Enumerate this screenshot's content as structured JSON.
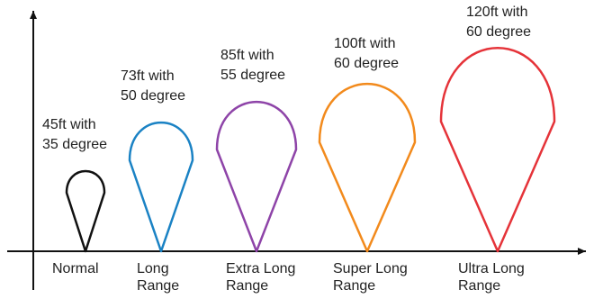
{
  "beams": [
    {
      "id": "normal",
      "category": [
        "Normal"
      ],
      "distance_label": "45ft with",
      "angle_label": "35 degree",
      "distance_ft": 45,
      "angle_deg": 35,
      "color": "#111111"
    },
    {
      "id": "long-range",
      "category": [
        "Long",
        "Range"
      ],
      "distance_label": "73ft with",
      "angle_label": "50 degree",
      "distance_ft": 73,
      "angle_deg": 50,
      "color": "#1a82c4"
    },
    {
      "id": "extra-long-range",
      "category": [
        "Extra Long",
        "Range"
      ],
      "distance_label": "85ft with",
      "angle_label": "55 degree",
      "distance_ft": 85,
      "angle_deg": 55,
      "color": "#8e44a8"
    },
    {
      "id": "super-long-range",
      "category": [
        "Super Long",
        "Range"
      ],
      "distance_label": "100ft with",
      "angle_label": "60 degree",
      "distance_ft": 100,
      "angle_deg": 60,
      "color": "#f28a1c"
    },
    {
      "id": "ultra-long-range",
      "category": [
        "Ultra Long",
        "Range"
      ],
      "distance_label": "120ft with",
      "angle_label": "60 degree",
      "distance_ft": 120,
      "angle_deg": 60,
      "color": "#e53339"
    }
  ],
  "axis_color": "#111111"
}
